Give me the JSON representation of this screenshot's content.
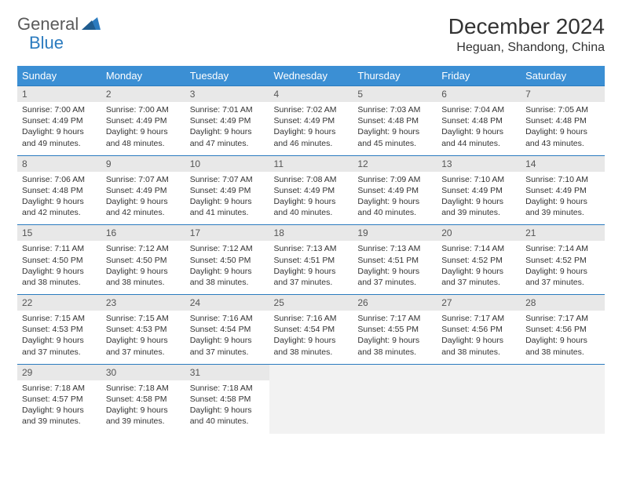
{
  "logo": {
    "part1": "General",
    "part2": "Blue"
  },
  "title": "December 2024",
  "location": "Heguan, Shandong, China",
  "colors": {
    "header_bg": "#3b8fd4",
    "header_text": "#ffffff",
    "daynum_bg": "#e8e8e8",
    "border": "#2b7bbf",
    "logo_gray": "#5a5a5a",
    "logo_blue": "#2b7bbf"
  },
  "weekdays": [
    "Sunday",
    "Monday",
    "Tuesday",
    "Wednesday",
    "Thursday",
    "Friday",
    "Saturday"
  ],
  "weeks": [
    [
      {
        "n": "1",
        "sr": "7:00 AM",
        "ss": "4:49 PM",
        "dl": "9 hours and 49 minutes."
      },
      {
        "n": "2",
        "sr": "7:00 AM",
        "ss": "4:49 PM",
        "dl": "9 hours and 48 minutes."
      },
      {
        "n": "3",
        "sr": "7:01 AM",
        "ss": "4:49 PM",
        "dl": "9 hours and 47 minutes."
      },
      {
        "n": "4",
        "sr": "7:02 AM",
        "ss": "4:49 PM",
        "dl": "9 hours and 46 minutes."
      },
      {
        "n": "5",
        "sr": "7:03 AM",
        "ss": "4:48 PM",
        "dl": "9 hours and 45 minutes."
      },
      {
        "n": "6",
        "sr": "7:04 AM",
        "ss": "4:48 PM",
        "dl": "9 hours and 44 minutes."
      },
      {
        "n": "7",
        "sr": "7:05 AM",
        "ss": "4:48 PM",
        "dl": "9 hours and 43 minutes."
      }
    ],
    [
      {
        "n": "8",
        "sr": "7:06 AM",
        "ss": "4:48 PM",
        "dl": "9 hours and 42 minutes."
      },
      {
        "n": "9",
        "sr": "7:07 AM",
        "ss": "4:49 PM",
        "dl": "9 hours and 42 minutes."
      },
      {
        "n": "10",
        "sr": "7:07 AM",
        "ss": "4:49 PM",
        "dl": "9 hours and 41 minutes."
      },
      {
        "n": "11",
        "sr": "7:08 AM",
        "ss": "4:49 PM",
        "dl": "9 hours and 40 minutes."
      },
      {
        "n": "12",
        "sr": "7:09 AM",
        "ss": "4:49 PM",
        "dl": "9 hours and 40 minutes."
      },
      {
        "n": "13",
        "sr": "7:10 AM",
        "ss": "4:49 PM",
        "dl": "9 hours and 39 minutes."
      },
      {
        "n": "14",
        "sr": "7:10 AM",
        "ss": "4:49 PM",
        "dl": "9 hours and 39 minutes."
      }
    ],
    [
      {
        "n": "15",
        "sr": "7:11 AM",
        "ss": "4:50 PM",
        "dl": "9 hours and 38 minutes."
      },
      {
        "n": "16",
        "sr": "7:12 AM",
        "ss": "4:50 PM",
        "dl": "9 hours and 38 minutes."
      },
      {
        "n": "17",
        "sr": "7:12 AM",
        "ss": "4:50 PM",
        "dl": "9 hours and 38 minutes."
      },
      {
        "n": "18",
        "sr": "7:13 AM",
        "ss": "4:51 PM",
        "dl": "9 hours and 37 minutes."
      },
      {
        "n": "19",
        "sr": "7:13 AM",
        "ss": "4:51 PM",
        "dl": "9 hours and 37 minutes."
      },
      {
        "n": "20",
        "sr": "7:14 AM",
        "ss": "4:52 PM",
        "dl": "9 hours and 37 minutes."
      },
      {
        "n": "21",
        "sr": "7:14 AM",
        "ss": "4:52 PM",
        "dl": "9 hours and 37 minutes."
      }
    ],
    [
      {
        "n": "22",
        "sr": "7:15 AM",
        "ss": "4:53 PM",
        "dl": "9 hours and 37 minutes."
      },
      {
        "n": "23",
        "sr": "7:15 AM",
        "ss": "4:53 PM",
        "dl": "9 hours and 37 minutes."
      },
      {
        "n": "24",
        "sr": "7:16 AM",
        "ss": "4:54 PM",
        "dl": "9 hours and 37 minutes."
      },
      {
        "n": "25",
        "sr": "7:16 AM",
        "ss": "4:54 PM",
        "dl": "9 hours and 38 minutes."
      },
      {
        "n": "26",
        "sr": "7:17 AM",
        "ss": "4:55 PM",
        "dl": "9 hours and 38 minutes."
      },
      {
        "n": "27",
        "sr": "7:17 AM",
        "ss": "4:56 PM",
        "dl": "9 hours and 38 minutes."
      },
      {
        "n": "28",
        "sr": "7:17 AM",
        "ss": "4:56 PM",
        "dl": "9 hours and 38 minutes."
      }
    ],
    [
      {
        "n": "29",
        "sr": "7:18 AM",
        "ss": "4:57 PM",
        "dl": "9 hours and 39 minutes."
      },
      {
        "n": "30",
        "sr": "7:18 AM",
        "ss": "4:58 PM",
        "dl": "9 hours and 39 minutes."
      },
      {
        "n": "31",
        "sr": "7:18 AM",
        "ss": "4:58 PM",
        "dl": "9 hours and 40 minutes."
      },
      null,
      null,
      null,
      null
    ]
  ],
  "labels": {
    "sunrise": "Sunrise: ",
    "sunset": "Sunset: ",
    "daylight": "Daylight: "
  }
}
